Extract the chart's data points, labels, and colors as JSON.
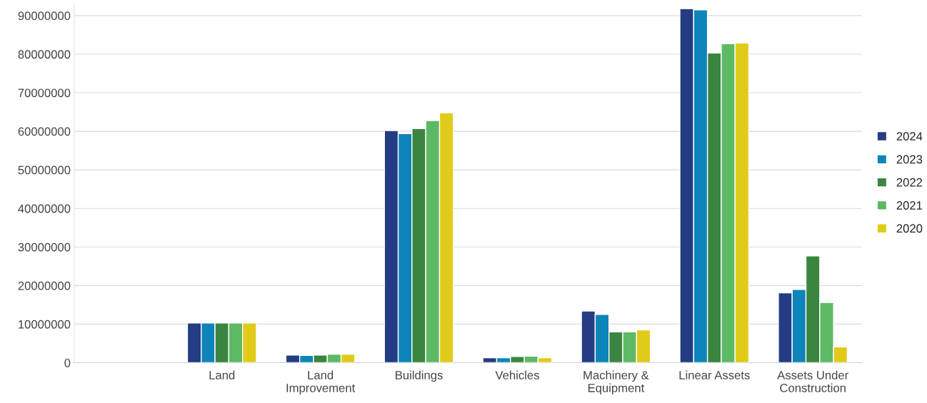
{
  "chart_data": {
    "type": "bar",
    "categories": [
      null,
      "Land",
      "Land\nImprovement",
      "Buildings",
      "Vehicles",
      "Machinery &\nEquipment",
      "Linear Assets",
      "Assets Under\nConstruction"
    ],
    "series": [
      {
        "name": "2024",
        "color": "#233c83",
        "values": [
          null,
          10300000.0,
          2000000.0,
          60200000.0,
          1300000.0,
          13400000.0,
          91800000.0,
          18100000.0
        ]
      },
      {
        "name": "2023",
        "color": "#0e85ba",
        "values": [
          null,
          10300000.0,
          1900000.0,
          59400000.0,
          1300000.0,
          12500000.0,
          91500000.0,
          19000000.0
        ]
      },
      {
        "name": "2022",
        "color": "#3a8540",
        "values": [
          null,
          10300000.0,
          2000000.0,
          60700000.0,
          1600000.0,
          8000000.0,
          80300000.0,
          27700000.0
        ]
      },
      {
        "name": "2021",
        "color": "#5db964",
        "values": [
          null,
          10300000.0,
          2200000.0,
          62800000.0,
          1700000.0,
          8000000.0,
          82700000.0,
          15600000.0
        ]
      },
      {
        "name": "2020",
        "color": "#e1cb1a",
        "values": [
          null,
          10300000.0,
          2200000.0,
          64800000.0,
          1300000.0,
          8500000.0,
          82900000.0,
          4100000.0
        ]
      }
    ],
    "ylim": [
      0,
      93000000
    ],
    "yticks": [
      0,
      10000000,
      20000000,
      30000000,
      40000000,
      50000000,
      60000000,
      70000000,
      80000000,
      90000000
    ],
    "grid": "y",
    "legend": "right"
  }
}
